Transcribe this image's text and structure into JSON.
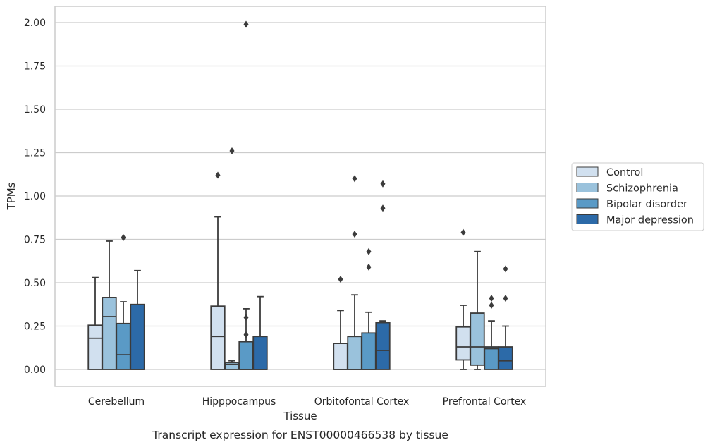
{
  "chart_data": {
    "type": "box",
    "title": "",
    "caption": "Transcript expression for ENST00000466538 by tissue",
    "xlabel": "Tissue",
    "ylabel": "TPMs",
    "ylim": [
      -0.1,
      2.1
    ],
    "yticks": [
      "0.00",
      "0.25",
      "0.50",
      "0.75",
      "1.00",
      "1.25",
      "1.50",
      "1.75",
      "2.00"
    ],
    "grid": "horizontal",
    "legend_position": "right",
    "categories": [
      "Cerebellum",
      "Hipppocampus",
      "Orbitofontal Cortex",
      "Prefrontal Cortex"
    ],
    "series": [
      {
        "name": "Control",
        "color": "#d1e0ef",
        "boxes": [
          {
            "q1": 0.0,
            "median": 0.18,
            "q3": 0.255,
            "whisker_low": 0.0,
            "whisker_high": 0.53,
            "outliers": []
          },
          {
            "q1": 0.0,
            "median": 0.19,
            "q3": 0.365,
            "whisker_low": 0.0,
            "whisker_high": 0.88,
            "outliers": [
              1.12
            ]
          },
          {
            "q1": 0.0,
            "median": 0.0,
            "q3": 0.15,
            "whisker_low": 0.0,
            "whisker_high": 0.34,
            "outliers": [
              0.52
            ]
          },
          {
            "q1": 0.055,
            "median": 0.13,
            "q3": 0.245,
            "whisker_low": 0.0,
            "whisker_high": 0.37,
            "outliers": [
              0.79
            ]
          }
        ]
      },
      {
        "name": "Schizophrenia",
        "color": "#9ac2dc",
        "boxes": [
          {
            "q1": 0.0,
            "median": 0.305,
            "q3": 0.415,
            "whisker_low": 0.0,
            "whisker_high": 0.74,
            "outliers": []
          },
          {
            "q1": 0.0,
            "median": 0.03,
            "q3": 0.04,
            "whisker_low": 0.0,
            "whisker_high": 0.05,
            "outliers": [
              1.26
            ]
          },
          {
            "q1": 0.0,
            "median": 0.0,
            "q3": 0.19,
            "whisker_low": 0.0,
            "whisker_high": 0.43,
            "outliers": [
              0.78,
              1.1
            ]
          },
          {
            "q1": 0.025,
            "median": 0.13,
            "q3": 0.325,
            "whisker_low": 0.0,
            "whisker_high": 0.68,
            "outliers": []
          }
        ]
      },
      {
        "name": "Bipolar disorder",
        "color": "#5a9ac6",
        "boxes": [
          {
            "q1": 0.0,
            "median": 0.085,
            "q3": 0.265,
            "whisker_low": 0.0,
            "whisker_high": 0.39,
            "outliers": [
              0.76
            ]
          },
          {
            "q1": 0.0,
            "median": 0.0,
            "q3": 0.16,
            "whisker_low": 0.0,
            "whisker_high": 0.35,
            "outliers": [
              0.2,
              0.3,
              1.99
            ]
          },
          {
            "q1": 0.0,
            "median": 0.0,
            "q3": 0.21,
            "whisker_low": 0.0,
            "whisker_high": 0.33,
            "outliers": [
              0.59,
              0.68
            ]
          },
          {
            "q1": 0.0,
            "median": 0.12,
            "q3": 0.13,
            "whisker_low": 0.0,
            "whisker_high": 0.28,
            "outliers": [
              0.37,
              0.41
            ]
          }
        ]
      },
      {
        "name": "Major depression",
        "color": "#2c6aa8",
        "boxes": [
          {
            "q1": 0.0,
            "median": 0.0,
            "q3": 0.375,
            "whisker_low": 0.0,
            "whisker_high": 0.57,
            "outliers": []
          },
          {
            "q1": 0.0,
            "median": 0.0,
            "q3": 0.19,
            "whisker_low": 0.0,
            "whisker_high": 0.42,
            "outliers": []
          },
          {
            "q1": 0.0,
            "median": 0.11,
            "q3": 0.27,
            "whisker_low": 0.0,
            "whisker_high": 0.28,
            "outliers": [
              0.93,
              1.07
            ]
          },
          {
            "q1": 0.0,
            "median": 0.05,
            "q3": 0.13,
            "whisker_low": 0.0,
            "whisker_high": 0.25,
            "outliers": [
              0.41,
              0.58
            ]
          }
        ]
      }
    ]
  }
}
